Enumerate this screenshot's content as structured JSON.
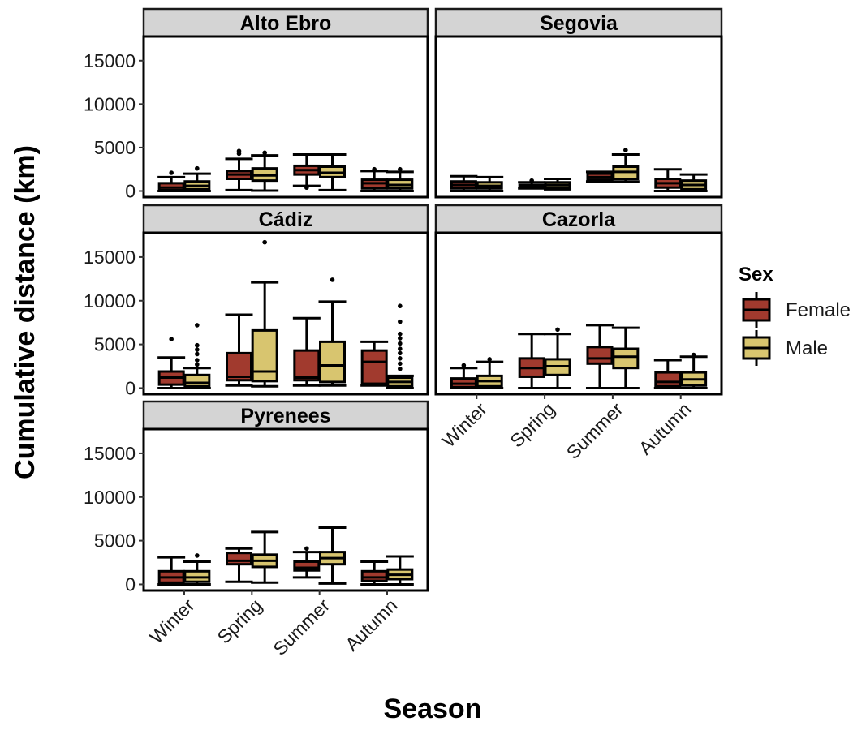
{
  "chart_data": {
    "type": "boxplot",
    "ylabel": "Cumulative distance (km)",
    "xlabel": "Season",
    "categories": [
      "Winter",
      "Spring",
      "Summer",
      "Autumn"
    ],
    "yticks": [
      0,
      5000,
      10000,
      15000
    ],
    "ylim": [
      -700,
      17500
    ],
    "legend": {
      "title": "Sex",
      "placement": "right",
      "entries": [
        {
          "name": "Female",
          "color": "#a13a2e"
        },
        {
          "name": "Male",
          "color": "#d8c56f"
        }
      ]
    },
    "colors": {
      "Female": "#a13a2e",
      "Male": "#d8c56f",
      "strip": "#d4d4d4"
    },
    "panels": [
      {
        "name": "Alto Ebro",
        "boxes": [
          {
            "season": "Winter",
            "sex": "Female",
            "min": 0,
            "q1": 100,
            "median": 400,
            "q3": 900,
            "max": 1600,
            "outliers": [
              2100
            ]
          },
          {
            "season": "Winter",
            "sex": "Male",
            "min": 0,
            "q1": 200,
            "median": 600,
            "q3": 1100,
            "max": 2000,
            "outliers": [
              2600
            ]
          },
          {
            "season": "Spring",
            "sex": "Female",
            "min": 100,
            "q1": 1400,
            "median": 1900,
            "q3": 2300,
            "max": 3700,
            "outliers": [
              4300,
              4600
            ]
          },
          {
            "season": "Spring",
            "sex": "Male",
            "min": 50,
            "q1": 1200,
            "median": 1800,
            "q3": 2600,
            "max": 4100,
            "outliers": [
              4400
            ]
          },
          {
            "season": "Summer",
            "sex": "Female",
            "min": 600,
            "q1": 1900,
            "median": 2400,
            "q3": 2900,
            "max": 4200,
            "outliers": [
              400
            ]
          },
          {
            "season": "Summer",
            "sex": "Male",
            "min": 100,
            "q1": 1600,
            "median": 2100,
            "q3": 2800,
            "max": 4200,
            "outliers": []
          },
          {
            "season": "Autumn",
            "sex": "Female",
            "min": 0,
            "q1": 300,
            "median": 900,
            "q3": 1300,
            "max": 2300,
            "outliers": [
              2500
            ]
          },
          {
            "season": "Autumn",
            "sex": "Male",
            "min": 0,
            "q1": 300,
            "median": 700,
            "q3": 1300,
            "max": 2200,
            "outliers": [
              2500
            ]
          }
        ]
      },
      {
        "name": "Segovia",
        "boxes": [
          {
            "season": "Winter",
            "sex": "Female",
            "min": 0,
            "q1": 300,
            "median": 700,
            "q3": 1100,
            "max": 1700,
            "outliers": []
          },
          {
            "season": "Winter",
            "sex": "Male",
            "min": 0,
            "q1": 300,
            "median": 600,
            "q3": 1000,
            "max": 1600,
            "outliers": []
          },
          {
            "season": "Spring",
            "sex": "Female",
            "min": 300,
            "q1": 400,
            "median": 600,
            "q3": 700,
            "max": 1000,
            "outliers": [
              1200
            ]
          },
          {
            "season": "Spring",
            "sex": "Male",
            "min": 200,
            "q1": 400,
            "median": 700,
            "q3": 1000,
            "max": 1400,
            "outliers": []
          },
          {
            "season": "Summer",
            "sex": "Female",
            "min": 1100,
            "q1": 1300,
            "median": 1600,
            "q3": 2000,
            "max": 2200,
            "outliers": []
          },
          {
            "season": "Summer",
            "sex": "Male",
            "min": 1100,
            "q1": 1400,
            "median": 2200,
            "q3": 2800,
            "max": 4200,
            "outliers": [
              4700
            ]
          },
          {
            "season": "Autumn",
            "sex": "Female",
            "min": 0,
            "q1": 400,
            "median": 900,
            "q3": 1400,
            "max": 2500,
            "outliers": []
          },
          {
            "season": "Autumn",
            "sex": "Male",
            "min": 0,
            "q1": 200,
            "median": 700,
            "q3": 1200,
            "max": 1900,
            "outliers": []
          }
        ]
      },
      {
        "name": "Cádiz",
        "boxes": [
          {
            "season": "Winter",
            "sex": "Female",
            "min": 0,
            "q1": 400,
            "median": 1200,
            "q3": 1900,
            "max": 3500,
            "outliers": [
              5600
            ]
          },
          {
            "season": "Winter",
            "sex": "Male",
            "min": 0,
            "q1": 200,
            "median": 600,
            "q3": 1500,
            "max": 2300,
            "outliers": [
              2700,
              3200,
              3900,
              4400,
              4900,
              7200
            ]
          },
          {
            "season": "Spring",
            "sex": "Female",
            "min": 300,
            "q1": 900,
            "median": 1300,
            "q3": 4000,
            "max": 8400,
            "outliers": []
          },
          {
            "season": "Spring",
            "sex": "Male",
            "min": 200,
            "q1": 800,
            "median": 1900,
            "q3": 6600,
            "max": 12100,
            "outliers": [
              16700
            ]
          },
          {
            "season": "Summer",
            "sex": "Female",
            "min": 300,
            "q1": 900,
            "median": 1200,
            "q3": 4300,
            "max": 8000,
            "outliers": []
          },
          {
            "season": "Summer",
            "sex": "Male",
            "min": 300,
            "q1": 700,
            "median": 2600,
            "q3": 5300,
            "max": 9900,
            "outliers": [
              12400
            ]
          },
          {
            "season": "Autumn",
            "sex": "Female",
            "min": 300,
            "q1": 500,
            "median": 3000,
            "q3": 4300,
            "max": 5300,
            "outliers": []
          },
          {
            "season": "Autumn",
            "sex": "Male",
            "min": 0,
            "q1": 200,
            "median": 700,
            "q3": 1200,
            "max": 1400,
            "outliers": [
              2200,
              2800,
              3400,
              4000,
              4500,
              5100,
              5700,
              6200,
              7600,
              9400
            ]
          }
        ]
      },
      {
        "name": "Cazorla",
        "boxes": [
          {
            "season": "Winter",
            "sex": "Female",
            "min": 0,
            "q1": 100,
            "median": 500,
            "q3": 1100,
            "max": 2300,
            "outliers": [
              2600
            ]
          },
          {
            "season": "Winter",
            "sex": "Male",
            "min": 0,
            "q1": 200,
            "median": 800,
            "q3": 1400,
            "max": 3000,
            "outliers": [
              3300
            ]
          },
          {
            "season": "Spring",
            "sex": "Female",
            "min": 0,
            "q1": 1300,
            "median": 2300,
            "q3": 3400,
            "max": 6200,
            "outliers": []
          },
          {
            "season": "Spring",
            "sex": "Male",
            "min": 0,
            "q1": 1500,
            "median": 2500,
            "q3": 3300,
            "max": 6200,
            "outliers": [
              6700
            ]
          },
          {
            "season": "Summer",
            "sex": "Female",
            "min": 0,
            "q1": 2800,
            "median": 3400,
            "q3": 4700,
            "max": 7200,
            "outliers": []
          },
          {
            "season": "Summer",
            "sex": "Male",
            "min": 0,
            "q1": 2300,
            "median": 3600,
            "q3": 4500,
            "max": 6900,
            "outliers": []
          },
          {
            "season": "Autumn",
            "sex": "Female",
            "min": 0,
            "q1": 200,
            "median": 700,
            "q3": 1800,
            "max": 3200,
            "outliers": []
          },
          {
            "season": "Autumn",
            "sex": "Male",
            "min": 0,
            "q1": 300,
            "median": 1000,
            "q3": 1800,
            "max": 3600,
            "outliers": [
              3800
            ]
          }
        ]
      },
      {
        "name": "Pyrenees",
        "boxes": [
          {
            "season": "Winter",
            "sex": "Female",
            "min": 0,
            "q1": 200,
            "median": 800,
            "q3": 1500,
            "max": 3100,
            "outliers": []
          },
          {
            "season": "Winter",
            "sex": "Male",
            "min": 0,
            "q1": 300,
            "median": 800,
            "q3": 1500,
            "max": 2600,
            "outliers": [
              3300
            ]
          },
          {
            "season": "Spring",
            "sex": "Female",
            "min": 300,
            "q1": 2300,
            "median": 2700,
            "q3": 3600,
            "max": 4100,
            "outliers": []
          },
          {
            "season": "Spring",
            "sex": "Male",
            "min": 200,
            "q1": 2000,
            "median": 2700,
            "q3": 3400,
            "max": 6000,
            "outliers": []
          },
          {
            "season": "Summer",
            "sex": "Female",
            "min": 800,
            "q1": 1600,
            "median": 1900,
            "q3": 2600,
            "max": 3700,
            "outliers": [
              4100
            ]
          },
          {
            "season": "Summer",
            "sex": "Male",
            "min": 100,
            "q1": 2300,
            "median": 3000,
            "q3": 3700,
            "max": 6500,
            "outliers": []
          },
          {
            "season": "Autumn",
            "sex": "Female",
            "min": 0,
            "q1": 400,
            "median": 800,
            "q3": 1500,
            "max": 2600,
            "outliers": []
          },
          {
            "season": "Autumn",
            "sex": "Male",
            "min": 0,
            "q1": 600,
            "median": 1100,
            "q3": 1700,
            "max": 3200,
            "outliers": []
          }
        ]
      }
    ]
  }
}
